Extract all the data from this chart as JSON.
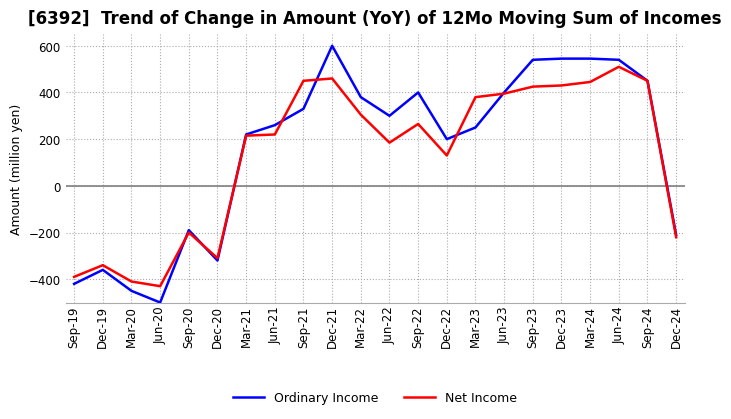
{
  "title": "[6392]  Trend of Change in Amount (YoY) of 12Mo Moving Sum of Incomes",
  "ylabel": "Amount (million yen)",
  "ylim": [
    -500,
    650
  ],
  "yticks": [
    -400,
    -200,
    0,
    200,
    400,
    600
  ],
  "x_labels": [
    "Sep-19",
    "Dec-19",
    "Mar-20",
    "Jun-20",
    "Sep-20",
    "Dec-20",
    "Mar-21",
    "Jun-21",
    "Sep-21",
    "Dec-21",
    "Mar-22",
    "Jun-22",
    "Sep-22",
    "Dec-22",
    "Mar-23",
    "Jun-23",
    "Sep-23",
    "Dec-23",
    "Mar-24",
    "Jun-24",
    "Sep-24",
    "Dec-24"
  ],
  "ordinary_income": [
    -420,
    -360,
    -450,
    -500,
    -190,
    -320,
    220,
    260,
    330,
    600,
    380,
    300,
    400,
    200,
    250,
    400,
    540,
    545,
    545,
    540,
    450,
    -210
  ],
  "net_income": [
    -390,
    -340,
    -410,
    -430,
    -200,
    -310,
    215,
    220,
    450,
    460,
    305,
    185,
    265,
    130,
    380,
    395,
    425,
    430,
    445,
    510,
    450,
    -220
  ],
  "ordinary_color": "#0000FF",
  "net_color": "#FF0000",
  "background_color": "#FFFFFF",
  "grid_color": "#AAAAAA",
  "title_fontsize": 12,
  "label_fontsize": 9,
  "tick_fontsize": 8.5
}
